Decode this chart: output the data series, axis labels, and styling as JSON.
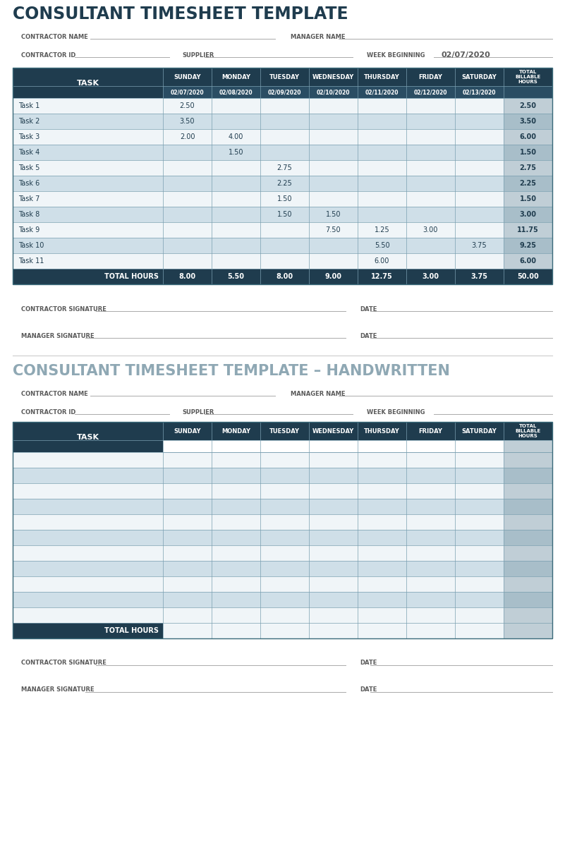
{
  "title1": "CONSULTANT TIMESHEET TEMPLATE",
  "title2": "CONSULTANT TIMESHEET TEMPLATE – HANDWRITTEN",
  "contractor_name_label": "CONTRACTOR NAME",
  "manager_name_label": "MANAGER NAME",
  "contractor_id_label": "CONTRACTOR ID",
  "supplier_label": "SUPPLIER",
  "week_beginning_label": "WEEK BEGINNING",
  "week_beginning_value": "02/07/2020",
  "contractor_signature_label": "CONTRACTOR SIGNATURE",
  "manager_signature_label": "MANAGER SIGNATURE",
  "date_label": "DATE",
  "days": [
    "SUNDAY",
    "MONDAY",
    "TUESDAY",
    "WEDNESDAY",
    "THURSDAY",
    "FRIDAY",
    "SATURDAY"
  ],
  "dates": [
    "02/07/2020",
    "02/08/2020",
    "02/09/2020",
    "02/10/2020",
    "02/11/2020",
    "02/12/2020",
    "02/13/2020"
  ],
  "tasks": [
    "Task 1",
    "Task 2",
    "Task 3",
    "Task 4",
    "Task 5",
    "Task 6",
    "Task 7",
    "Task 8",
    "Task 9",
    "Task 10",
    "Task 11"
  ],
  "data": [
    [
      "2.50",
      "",
      "",
      "",
      "",
      "",
      ""
    ],
    [
      "3.50",
      "",
      "",
      "",
      "",
      "",
      ""
    ],
    [
      "2.00",
      "4.00",
      "",
      "",
      "",
      "",
      ""
    ],
    [
      "",
      "1.50",
      "",
      "",
      "",
      "",
      ""
    ],
    [
      "",
      "",
      "2.75",
      "",
      "",
      "",
      ""
    ],
    [
      "",
      "",
      "2.25",
      "",
      "",
      "",
      ""
    ],
    [
      "",
      "",
      "1.50",
      "",
      "",
      "",
      ""
    ],
    [
      "",
      "",
      "1.50",
      "1.50",
      "",
      "",
      ""
    ],
    [
      "",
      "",
      "",
      "7.50",
      "1.25",
      "3.00",
      ""
    ],
    [
      "",
      "",
      "",
      "",
      "5.50",
      "",
      "3.75"
    ],
    [
      "",
      "",
      "",
      "",
      "6.00",
      "",
      ""
    ]
  ],
  "totals_values": [
    "2.50",
    "3.50",
    "6.00",
    "1.50",
    "2.75",
    "2.25",
    "1.50",
    "3.00",
    "11.75",
    "9.25",
    "6.00"
  ],
  "col_totals": [
    "8.00",
    "5.50",
    "8.00",
    "9.00",
    "12.75",
    "3.00",
    "3.75"
  ],
  "grand_total": "50.00",
  "header_bg": "#1f3c4e",
  "header_text": "#ffffff",
  "row_light_bg": "#cfdfe8",
  "row_white_bg": "#f0f5f8",
  "total_col_light": "#a8bec9",
  "total_col_white": "#c0ced6",
  "footer_bg": "#1f3c4e",
  "title1_color": "#1f3c4e",
  "title2_color": "#8fa8b4",
  "label_color": "#5a5a5a",
  "underline_color": "#aaaaaa",
  "grid_color": "#7a9fb0"
}
